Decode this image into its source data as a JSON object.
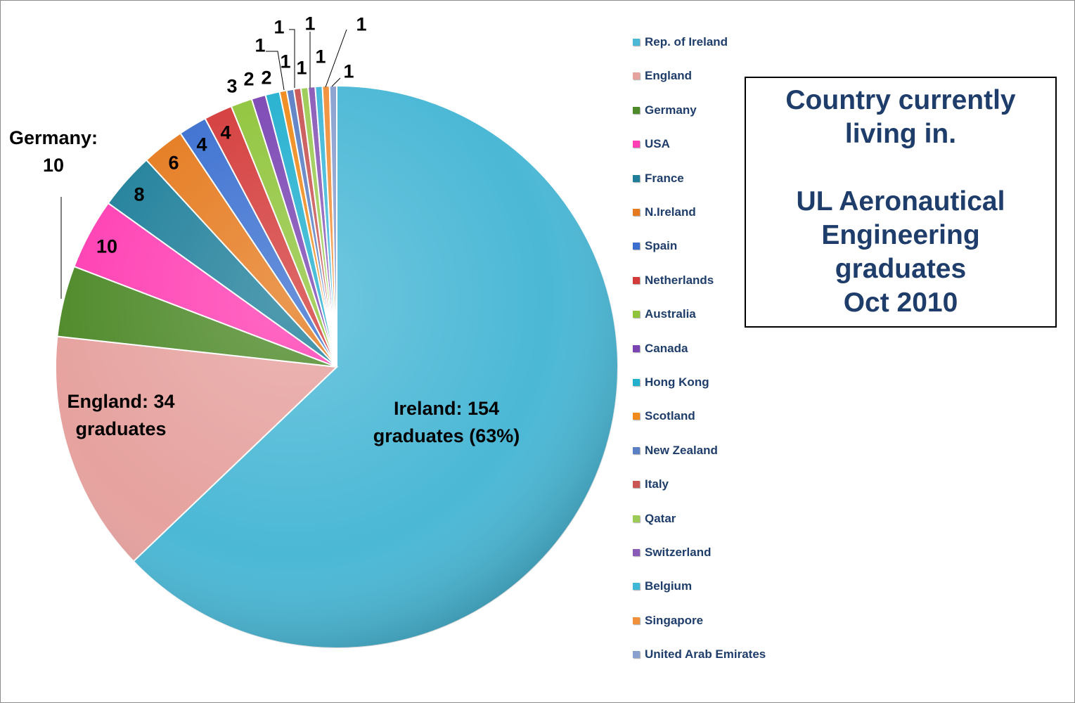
{
  "chart_data": {
    "type": "pie",
    "title_lines": [
      "Country currently",
      "living in."
    ],
    "subtitle_lines": [
      "UL Aeronautical",
      "Engineering",
      "graduates",
      "Oct 2010"
    ],
    "slices": [
      {
        "name": "Rep. of Ireland",
        "value": 154,
        "color": "#4bb8d6",
        "label_lines": [
          "Ireland: 154",
          "graduates (63%)"
        ]
      },
      {
        "name": "England",
        "value": 34,
        "color": "#e6a29f",
        "label_lines": [
          "England: 34",
          "graduates"
        ]
      },
      {
        "name": "Germany",
        "value": 10,
        "color": "#4f8a2a",
        "label_lines": [
          "Germany:",
          "10"
        ]
      },
      {
        "name": "USA",
        "value": 10,
        "color": "#ff3fb3",
        "label_lines": [
          "10"
        ]
      },
      {
        "name": "France",
        "value": 8,
        "color": "#1f7f9a",
        "label_lines": [
          "8"
        ]
      },
      {
        "name": "N.Ireland",
        "value": 6,
        "color": "#e57a1e",
        "label_lines": [
          "6"
        ]
      },
      {
        "name": "Spain",
        "value": 4,
        "color": "#3a6fd0",
        "label_lines": [
          "4"
        ]
      },
      {
        "name": "Netherlands",
        "value": 4,
        "color": "#d43a3a",
        "label_lines": [
          "4"
        ]
      },
      {
        "name": "Australia",
        "value": 3,
        "color": "#8fc43a",
        "label_lines": [
          "3"
        ]
      },
      {
        "name": "Canada",
        "value": 2,
        "color": "#7a45b3",
        "label_lines": [
          "2"
        ]
      },
      {
        "name": "Hong Kong",
        "value": 2,
        "color": "#22b0cf",
        "label_lines": [
          "2"
        ]
      },
      {
        "name": "Scotland",
        "value": 1,
        "color": "#f08a1a",
        "label_lines": [
          "1"
        ]
      },
      {
        "name": "New Zealand",
        "value": 1,
        "color": "#5b7fc4",
        "label_lines": [
          "1"
        ]
      },
      {
        "name": "Italy",
        "value": 1,
        "color": "#c95555",
        "label_lines": [
          "1"
        ]
      },
      {
        "name": "Qatar",
        "value": 1,
        "color": "#9ccc55",
        "label_lines": [
          "1"
        ]
      },
      {
        "name": "Switzerland",
        "value": 1,
        "color": "#8a5ab8",
        "label_lines": [
          "1"
        ]
      },
      {
        "name": "Belgium",
        "value": 1,
        "color": "#3fb8d8",
        "label_lines": [
          "1"
        ]
      },
      {
        "name": "Singapore",
        "value": 1,
        "color": "#f0903a",
        "label_lines": [
          "1"
        ]
      },
      {
        "name": "United Arab Emirates",
        "value": 1,
        "color": "#8aa0cf",
        "label_lines": [
          "1"
        ]
      }
    ],
    "legend_position": "right"
  }
}
